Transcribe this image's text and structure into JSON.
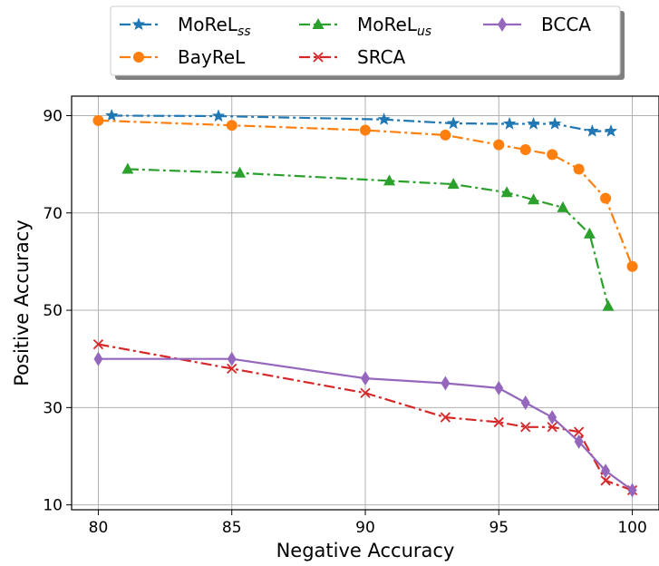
{
  "chart_data": {
    "type": "line",
    "xlabel": "Negative Accuracy",
    "ylabel": "Positive Accuracy",
    "xlim": [
      79,
      101
    ],
    "ylim": [
      9,
      94
    ],
    "xticks": [
      80,
      85,
      90,
      95,
      100
    ],
    "yticks": [
      10,
      30,
      50,
      70,
      90
    ],
    "grid": true,
    "legend_position": "top-center",
    "series": [
      {
        "name": "MoReL",
        "name_sub": "ss",
        "color": "#1f77b4",
        "marker": "star",
        "line": "dashdot",
        "x": [
          80.5,
          84.5,
          90.7,
          93.3,
          95.4,
          96.3,
          97.1,
          98.5,
          99.2
        ],
        "y": [
          90,
          89.9,
          89.2,
          88.4,
          88.3,
          88.3,
          88.3,
          86.8,
          86.8
        ]
      },
      {
        "name": "BayReL",
        "name_sub": "",
        "color": "#ff7f0e",
        "marker": "circle",
        "line": "dashdot",
        "x": [
          80,
          85,
          90,
          93,
          95,
          96,
          97,
          98,
          99,
          100
        ],
        "y": [
          89,
          88,
          87,
          86,
          84,
          83,
          82,
          79,
          73,
          59
        ]
      },
      {
        "name": "MoReL",
        "name_sub": "us",
        "color": "#2ca02c",
        "marker": "triangle",
        "line": "dashdot",
        "x": [
          81.1,
          85.3,
          90.9,
          93.3,
          95.3,
          96.3,
          97.4,
          98.4,
          99.1
        ],
        "y": [
          79,
          78.2,
          76.6,
          75.9,
          74.2,
          72.7,
          71.1,
          65.7,
          50.8
        ]
      },
      {
        "name": "SRCA",
        "name_sub": "",
        "color": "#d62728",
        "marker": "x",
        "line": "dashdot",
        "x": [
          80,
          85,
          90,
          93,
          95,
          96,
          97,
          98,
          99,
          100
        ],
        "y": [
          43,
          38,
          33,
          28,
          27,
          26,
          26,
          25,
          15,
          13
        ]
      },
      {
        "name": "BCCA",
        "name_sub": "",
        "color": "#9467bd",
        "marker": "diamond",
        "line": "solid",
        "x": [
          80,
          85,
          90,
          93,
          95,
          96,
          97,
          98,
          99,
          100
        ],
        "y": [
          40,
          40,
          36,
          35,
          34,
          31,
          28,
          23,
          17,
          13
        ]
      }
    ]
  }
}
